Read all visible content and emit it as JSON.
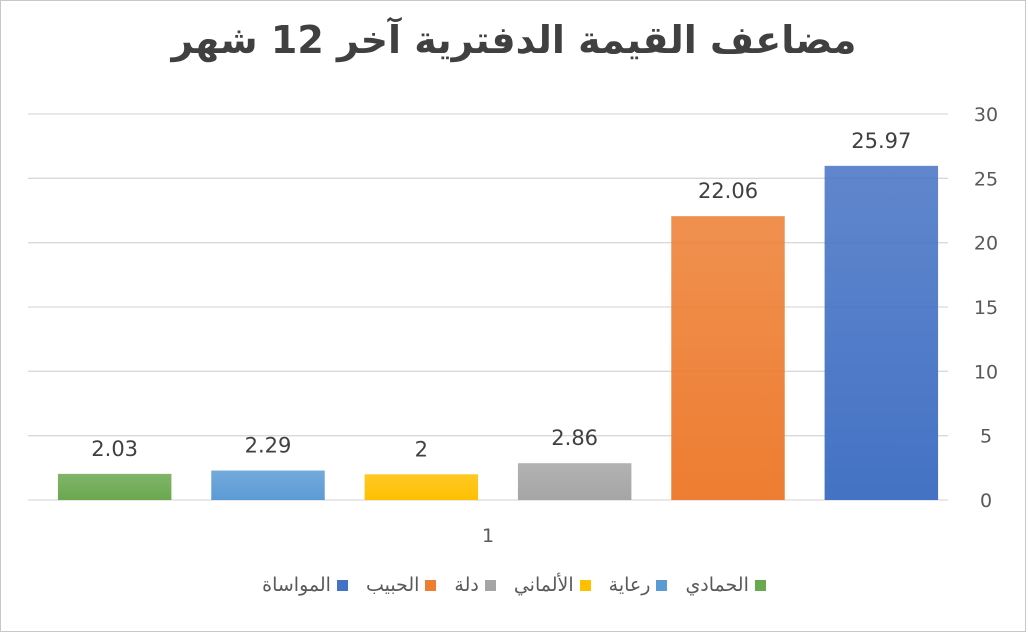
{
  "chart_data": {
    "type": "bar",
    "title": "مضاعف القيمة الدفترية آخر 12 شهر",
    "categories": [
      "1"
    ],
    "series": [
      {
        "name": "الحمادي",
        "values": [
          2.03
        ],
        "color": "#6aa84f"
      },
      {
        "name": "رعاية",
        "values": [
          2.29
        ],
        "color": "#5b9bd5"
      },
      {
        "name": "الألماني",
        "values": [
          2
        ],
        "color": "#ffc000"
      },
      {
        "name": "دلة",
        "values": [
          2.86
        ],
        "color": "#a5a5a5"
      },
      {
        "name": "الحبيب",
        "values": [
          22.06
        ],
        "color": "#ed7d31"
      },
      {
        "name": "المواساة",
        "values": [
          25.97
        ],
        "color": "#4472c4"
      }
    ],
    "data_labels": [
      "2.03",
      "2.29",
      "2",
      "2.86",
      "22.06",
      "25.97"
    ],
    "ylim": [
      0,
      30
    ],
    "yticks": [
      "0",
      "5",
      "10",
      "15",
      "20",
      "25",
      "30"
    ],
    "y_axis_side": "right",
    "grid": true,
    "legend_position": "bottom"
  }
}
